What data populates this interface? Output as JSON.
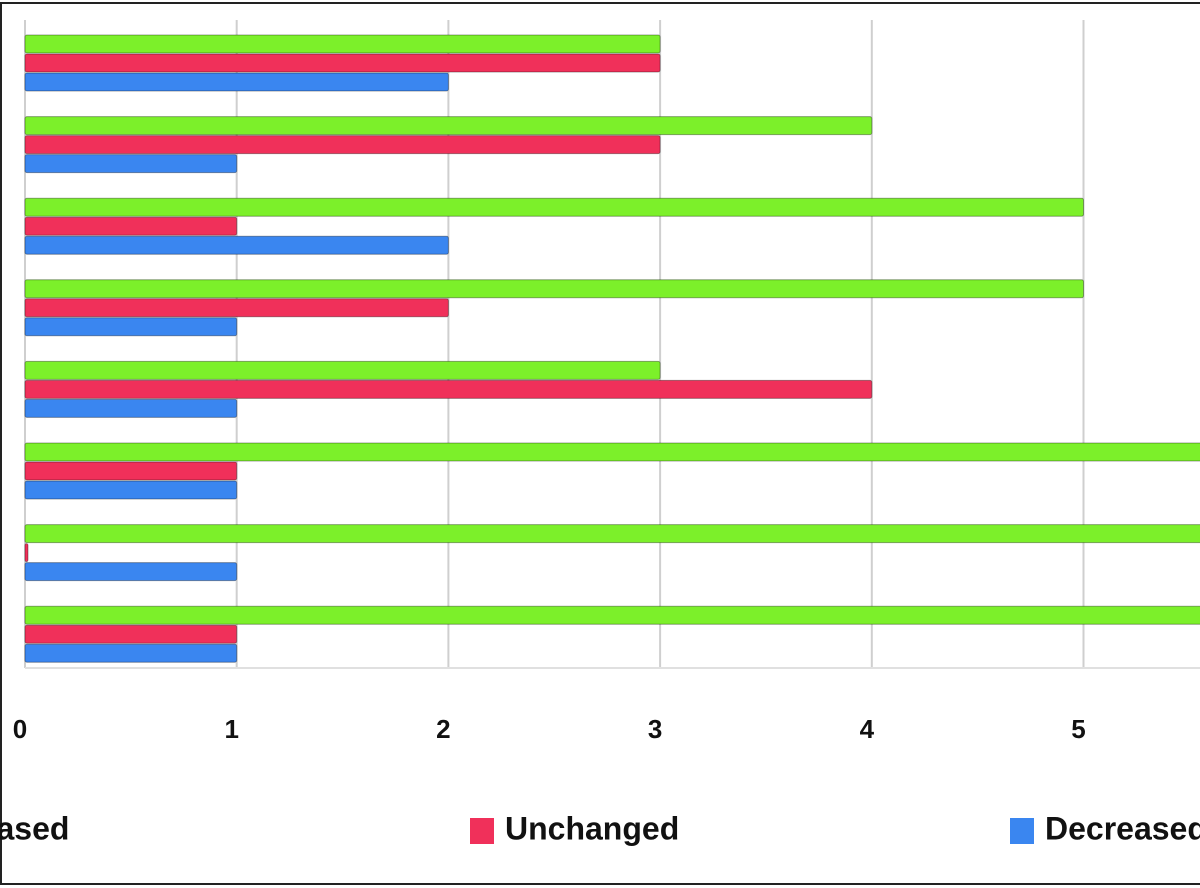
{
  "chart_data": {
    "type": "bar",
    "orientation": "horizontal",
    "categories": [
      null,
      null,
      null,
      null,
      null,
      null,
      null,
      null
    ],
    "series": [
      {
        "name": "Increased",
        "color": "#7cf02a",
        "values": [
          3,
          4,
          5,
          5,
          3,
          6,
          6,
          6
        ]
      },
      {
        "name": "Unchanged",
        "color": "#f0305a",
        "values": [
          3,
          3,
          1,
          2,
          4,
          1,
          0,
          1
        ]
      },
      {
        "name": "Decreased",
        "color": "#3a86f0",
        "values": [
          2,
          1,
          2,
          1,
          1,
          1,
          1,
          1
        ]
      }
    ],
    "xlim": [
      0,
      6
    ],
    "xticks": [
      0,
      1,
      2,
      3,
      4,
      5
    ],
    "grid": true,
    "legend": "bottom"
  }
}
